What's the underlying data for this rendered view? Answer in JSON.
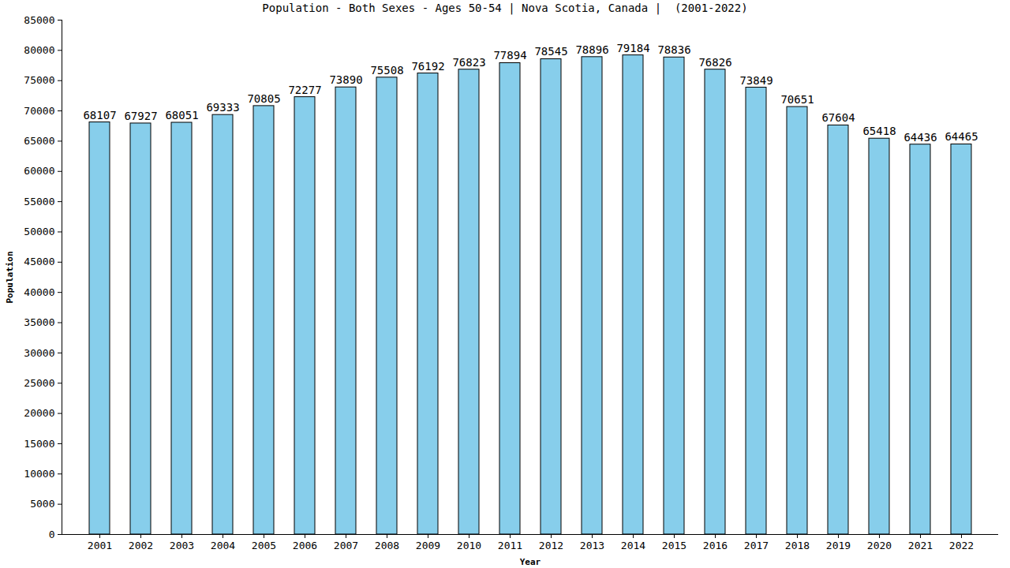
{
  "chart_data": {
    "type": "bar",
    "title": "Population - Both Sexes - Ages 50-54 | Nova Scotia, Canada |  (2001-2022)",
    "x_label": "Year",
    "y_label": "Population",
    "categories": [
      "2001",
      "2002",
      "2003",
      "2004",
      "2005",
      "2006",
      "2007",
      "2008",
      "2009",
      "2010",
      "2011",
      "2012",
      "2013",
      "2014",
      "2015",
      "2016",
      "2017",
      "2018",
      "2019",
      "2020",
      "2021",
      "2022"
    ],
    "values": [
      68107,
      67927,
      68051,
      69333,
      70805,
      72277,
      73890,
      75508,
      76192,
      76823,
      77894,
      78545,
      78896,
      79184,
      78836,
      76826,
      73849,
      70651,
      67604,
      65418,
      64436,
      64465
    ],
    "color": "#87ceeb",
    "ylim": [
      0,
      85000
    ],
    "yticks": [
      0,
      5000,
      10000,
      15000,
      20000,
      25000,
      30000,
      35000,
      40000,
      45000,
      50000,
      55000,
      60000,
      65000,
      70000,
      75000,
      80000,
      85000
    ],
    "grid": false,
    "data_labels": true
  }
}
